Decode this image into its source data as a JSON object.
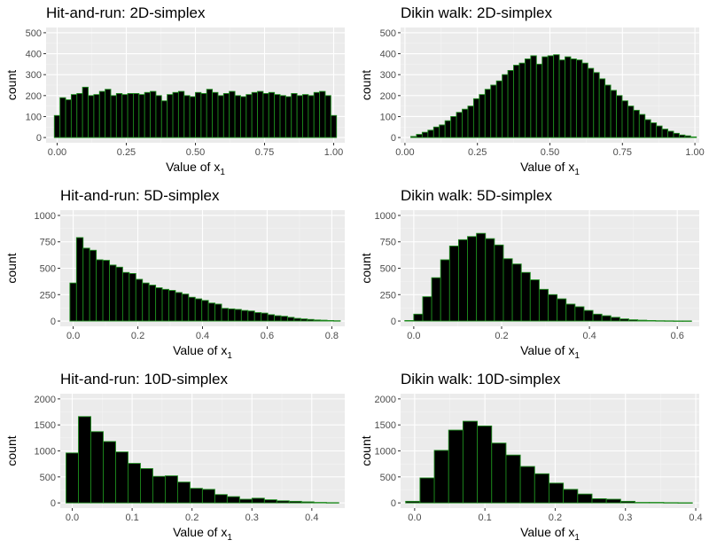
{
  "figure": {
    "colors": {
      "panel_bg": "#ebebeb",
      "grid_major": "#ffffff",
      "grid_minor": "#f4f4f4",
      "bar_fill": "#000000",
      "bar_outline": "#1d8a1d",
      "tick_text": "#4d4d4d"
    }
  },
  "chart_data": [
    {
      "type": "bar",
      "title": "Hit-and-run: 2D-simplex",
      "xlabel": "Value of x",
      "xlabel_subscript": "1",
      "ylabel": "count",
      "xlim": [
        -0.04,
        1.04
      ],
      "ylim": [
        -25,
        525
      ],
      "xticks": [
        0.0,
        0.25,
        0.5,
        0.75,
        1.0
      ],
      "xtick_labels": [
        "0.00",
        "0.25",
        "0.50",
        "0.75",
        "1.00"
      ],
      "yticks": [
        0,
        100,
        200,
        300,
        400,
        500
      ],
      "ytick_labels": [
        "0",
        "100",
        "200",
        "300",
        "400",
        "500"
      ],
      "bin_width": 0.0204,
      "bin_centers": [
        0.0,
        0.0204,
        0.0408,
        0.0612,
        0.0816,
        0.102,
        0.1224,
        0.1429,
        0.1633,
        0.1837,
        0.2041,
        0.2245,
        0.2449,
        0.2653,
        0.2857,
        0.3061,
        0.3265,
        0.3469,
        0.3673,
        0.3878,
        0.4082,
        0.4286,
        0.449,
        0.4694,
        0.4898,
        0.5102,
        0.5306,
        0.551,
        0.5714,
        0.5918,
        0.6122,
        0.6327,
        0.6531,
        0.6735,
        0.6939,
        0.7143,
        0.7347,
        0.7551,
        0.7755,
        0.7959,
        0.8163,
        0.8367,
        0.8571,
        0.8776,
        0.898,
        0.9184,
        0.9388,
        0.9592,
        0.9796,
        1.0
      ],
      "values": [
        105,
        190,
        180,
        205,
        210,
        240,
        200,
        205,
        220,
        230,
        200,
        210,
        205,
        210,
        210,
        205,
        215,
        220,
        200,
        175,
        205,
        215,
        220,
        200,
        195,
        215,
        210,
        230,
        215,
        200,
        210,
        220,
        200,
        195,
        205,
        215,
        220,
        210,
        215,
        205,
        200,
        195,
        210,
        200,
        205,
        200,
        215,
        220,
        200,
        105
      ]
    },
    {
      "type": "bar",
      "title": "Dikin walk: 2D-simplex",
      "xlabel": "Value of x",
      "xlabel_subscript": "1",
      "ylabel": "count",
      "xlim": [
        -0.015,
        1.015
      ],
      "ylim": [
        -25,
        525
      ],
      "xticks": [
        0.0,
        0.25,
        0.5,
        0.75,
        1.0
      ],
      "xtick_labels": [
        "0.00",
        "0.25",
        "0.50",
        "0.75",
        "1.00"
      ],
      "yticks": [
        0,
        100,
        200,
        300,
        400,
        500
      ],
      "ytick_labels": [
        "0",
        "100",
        "200",
        "300",
        "400",
        "500"
      ],
      "bin_width": 0.0197,
      "bin_centers": [
        0.03,
        0.0497,
        0.0694,
        0.0891,
        0.1088,
        0.1285,
        0.1482,
        0.1679,
        0.1876,
        0.2073,
        0.227,
        0.2467,
        0.2664,
        0.2861,
        0.3058,
        0.3255,
        0.3452,
        0.3649,
        0.3846,
        0.4043,
        0.424,
        0.4437,
        0.4634,
        0.4831,
        0.5028,
        0.5225,
        0.5422,
        0.5619,
        0.5816,
        0.6013,
        0.621,
        0.6407,
        0.6604,
        0.6801,
        0.6998,
        0.7195,
        0.7392,
        0.7589,
        0.7786,
        0.7983,
        0.818,
        0.8377,
        0.8574,
        0.8771,
        0.8968,
        0.9165,
        0.9362,
        0.9559,
        0.9756,
        0.9953
      ],
      "values": [
        5,
        15,
        25,
        35,
        50,
        60,
        80,
        100,
        120,
        135,
        150,
        185,
        205,
        230,
        250,
        270,
        300,
        320,
        345,
        355,
        375,
        390,
        350,
        385,
        390,
        395,
        370,
        385,
        375,
        370,
        355,
        330,
        310,
        280,
        250,
        225,
        200,
        175,
        150,
        130,
        110,
        85,
        70,
        55,
        40,
        30,
        20,
        12,
        8,
        3
      ]
    },
    {
      "type": "bar",
      "title": "Hit-and-run: 5D-simplex",
      "xlabel": "Value of x",
      "xlabel_subscript": "1",
      "ylabel": "count",
      "xlim": [
        -0.04,
        0.84
      ],
      "ylim": [
        -50,
        1050
      ],
      "xticks": [
        0.0,
        0.2,
        0.4,
        0.6,
        0.8
      ],
      "xtick_labels": [
        "0.0",
        "0.2",
        "0.4",
        "0.6",
        "0.8"
      ],
      "yticks": [
        0,
        250,
        500,
        750,
        1000
      ],
      "ytick_labels": [
        "0",
        "250",
        "500",
        "750",
        "1000"
      ],
      "bin_width": 0.0204,
      "bin_centers": [
        0.0,
        0.0204,
        0.0408,
        0.0612,
        0.0816,
        0.102,
        0.1224,
        0.1428,
        0.1632,
        0.1836,
        0.204,
        0.2244,
        0.2448,
        0.2652,
        0.2856,
        0.306,
        0.3264,
        0.3468,
        0.3672,
        0.3876,
        0.408,
        0.4284,
        0.4488,
        0.4692,
        0.4896,
        0.51,
        0.5304,
        0.5508,
        0.5712,
        0.5916,
        0.612,
        0.6324,
        0.6528,
        0.6732,
        0.6936,
        0.714,
        0.7344,
        0.7548,
        0.7752,
        0.7956,
        0.816
      ],
      "values": [
        360,
        790,
        690,
        670,
        580,
        575,
        530,
        510,
        460,
        450,
        395,
        360,
        340,
        315,
        300,
        290,
        270,
        255,
        225,
        210,
        195,
        170,
        160,
        120,
        115,
        110,
        100,
        95,
        80,
        75,
        60,
        50,
        45,
        35,
        25,
        20,
        15,
        10,
        8,
        5,
        3
      ]
    },
    {
      "type": "bar",
      "title": "Dikin walk: 5D-simplex",
      "xlabel": "Value of x",
      "xlabel_subscript": "1",
      "ylabel": "count",
      "xlim": [
        -0.03,
        0.65
      ],
      "ylim": [
        -50,
        1050
      ],
      "xticks": [
        0.0,
        0.2,
        0.4,
        0.6
      ],
      "xtick_labels": [
        "0.0",
        "0.2",
        "0.4",
        "0.6"
      ],
      "yticks": [
        0,
        250,
        500,
        750,
        1000
      ],
      "ytick_labels": [
        "0",
        "250",
        "500",
        "750",
        "1000"
      ],
      "bin_width": 0.0204,
      "bin_centers": [
        -0.0102,
        0.0102,
        0.0306,
        0.051,
        0.0714,
        0.0918,
        0.1122,
        0.1326,
        0.153,
        0.1734,
        0.1938,
        0.2142,
        0.2346,
        0.255,
        0.2754,
        0.2958,
        0.3162,
        0.3366,
        0.357,
        0.3774,
        0.3978,
        0.4182,
        0.4386,
        0.459,
        0.4794,
        0.4998,
        0.5202,
        0.5406,
        0.561,
        0.5814,
        0.6018,
        0.6222
      ],
      "values": [
        5,
        65,
        230,
        410,
        580,
        710,
        770,
        800,
        830,
        780,
        720,
        590,
        540,
        460,
        390,
        300,
        250,
        210,
        160,
        135,
        100,
        65,
        50,
        35,
        20,
        12,
        8,
        5,
        3,
        2,
        1,
        1
      ]
    },
    {
      "type": "bar",
      "title": "Hit-and-run: 10D-simplex",
      "xlabel": "Value of x",
      "xlabel_subscript": "1",
      "ylabel": "count",
      "xlim": [
        -0.02,
        0.455
      ],
      "ylim": [
        -100,
        2100
      ],
      "xticks": [
        0.0,
        0.1,
        0.2,
        0.3,
        0.4
      ],
      "xtick_labels": [
        "0.0",
        "0.1",
        "0.2",
        "0.3",
        "0.4"
      ],
      "yticks": [
        0,
        500,
        1000,
        1500,
        2000
      ],
      "ytick_labels": [
        "0",
        "500",
        "1000",
        "1500",
        "2000"
      ],
      "bin_width": 0.0207,
      "bin_centers": [
        0.0,
        0.0207,
        0.0414,
        0.0621,
        0.0828,
        0.1035,
        0.1242,
        0.1449,
        0.1656,
        0.1863,
        0.207,
        0.2277,
        0.2484,
        0.2691,
        0.2898,
        0.3105,
        0.3312,
        0.3519,
        0.3726,
        0.3933,
        0.414,
        0.4347
      ],
      "values": [
        960,
        1660,
        1370,
        1180,
        980,
        760,
        660,
        510,
        520,
        400,
        280,
        260,
        160,
        120,
        70,
        90,
        60,
        40,
        30,
        20,
        10,
        5
      ]
    },
    {
      "type": "bar",
      "title": "Dikin walk: 10D-simplex",
      "xlabel": "Value of x",
      "xlabel_subscript": "1",
      "ylabel": "count",
      "xlim": [
        -0.02,
        0.405
      ],
      "ylim": [
        -100,
        2100
      ],
      "xticks": [
        0.0,
        0.1,
        0.2,
        0.3,
        0.4
      ],
      "xtick_labels": [
        "0.0",
        "0.1",
        "0.2",
        "0.3",
        "0.4"
      ],
      "yticks": [
        0,
        500,
        1000,
        1500,
        2000
      ],
      "ytick_labels": [
        "0",
        "500",
        "1000",
        "1500",
        "2000"
      ],
      "bin_width": 0.0204,
      "bin_centers": [
        -0.0026,
        0.0178,
        0.0382,
        0.0586,
        0.079,
        0.0994,
        0.1198,
        0.1402,
        0.1606,
        0.181,
        0.2014,
        0.2218,
        0.2422,
        0.2626,
        0.283,
        0.3034,
        0.3238,
        0.3442,
        0.3646,
        0.385
      ],
      "values": [
        30,
        480,
        1010,
        1400,
        1570,
        1480,
        1150,
        920,
        700,
        560,
        380,
        260,
        170,
        80,
        70,
        30,
        10,
        10,
        5,
        3
      ]
    }
  ]
}
